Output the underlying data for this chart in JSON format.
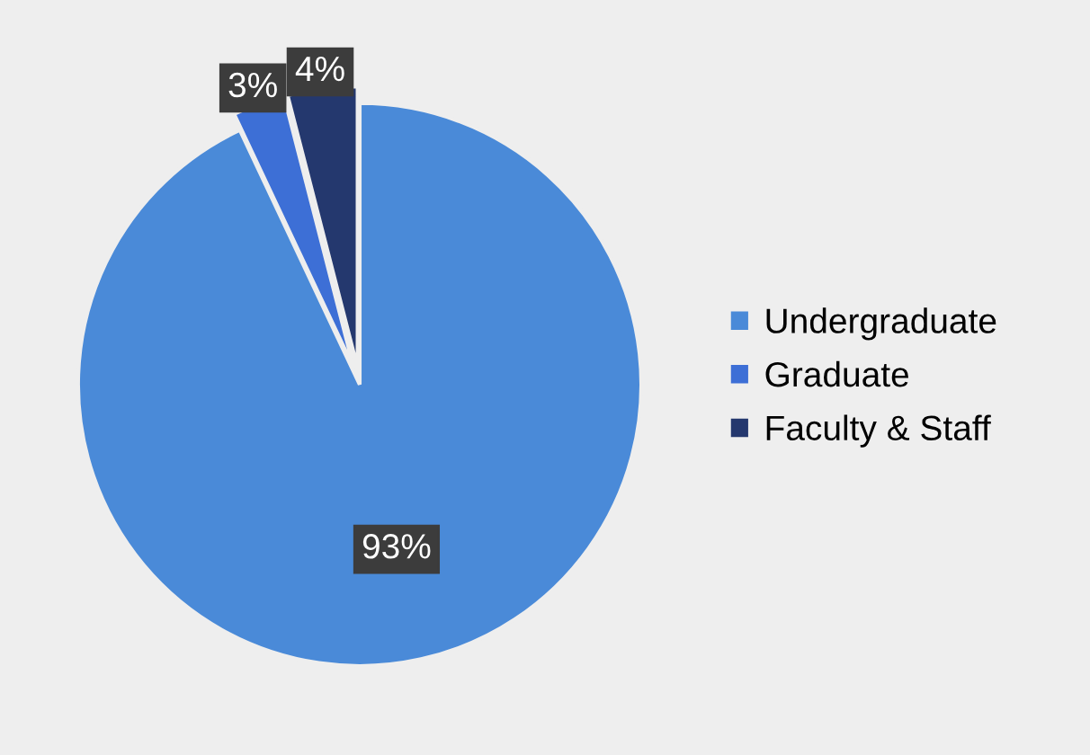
{
  "chart_data": {
    "type": "pie",
    "categories": [
      "Undergraduate",
      "Graduate",
      "Faculty & Staff"
    ],
    "values": [
      93,
      3,
      4
    ],
    "colors": [
      "#4a8ad8",
      "#3d6fd6",
      "#24386e"
    ],
    "value_labels": [
      "93%",
      "3%",
      "4%"
    ],
    "legend": "right"
  }
}
